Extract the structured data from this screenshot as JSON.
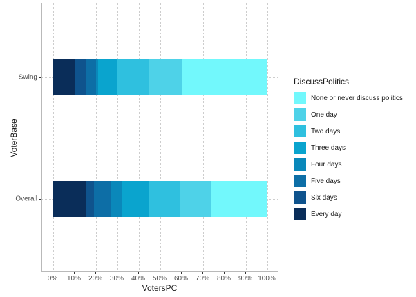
{
  "chart_data": {
    "type": "bar",
    "orientation": "horizontal",
    "stacked": true,
    "title": "",
    "xlabel": "VotersPC",
    "ylabel": "VoterBase",
    "categories": [
      "Swing",
      "Overall"
    ],
    "x_ticks": [
      "0%",
      "10%",
      "20%",
      "30%",
      "40%",
      "50%",
      "60%",
      "70%",
      "80%",
      "90%",
      "100%"
    ],
    "x_tick_values": [
      0,
      10,
      20,
      30,
      40,
      50,
      60,
      70,
      80,
      90,
      100
    ],
    "xlim": [
      0,
      100
    ],
    "grid": "dotted",
    "legend": {
      "title": "DiscussPolitics",
      "position": "right",
      "order_note": "legend listed lightest-first, bars stacked darkest-first"
    },
    "series": [
      {
        "name": "Every day",
        "color": "#0A2D59",
        "values": [
          10,
          15
        ]
      },
      {
        "name": "Six days",
        "color": "#0F538D",
        "values": [
          5,
          4
        ]
      },
      {
        "name": "Five days",
        "color": "#0D6EA6",
        "values": [
          5,
          8
        ]
      },
      {
        "name": "Four days",
        "color": "#0A88BA",
        "values": [
          1,
          5
        ]
      },
      {
        "name": "Three days",
        "color": "#0AA4CE",
        "values": [
          9,
          13
        ]
      },
      {
        "name": "Two days",
        "color": "#2FC0DF",
        "values": [
          15,
          14
        ]
      },
      {
        "name": "One day",
        "color": "#4ED2E8",
        "values": [
          15,
          15
        ]
      },
      {
        "name": "None or never discuss politics",
        "color": "#72F8FC",
        "values": [
          40,
          26
        ]
      }
    ],
    "colors": {
      "background": "#ffffff",
      "axis_line": "#b9b9b9",
      "gridline": "#cdcdcd",
      "tick_mark": "#333333",
      "tick_label": "#4d4d4d",
      "title_text": "#1a1a1a"
    }
  }
}
